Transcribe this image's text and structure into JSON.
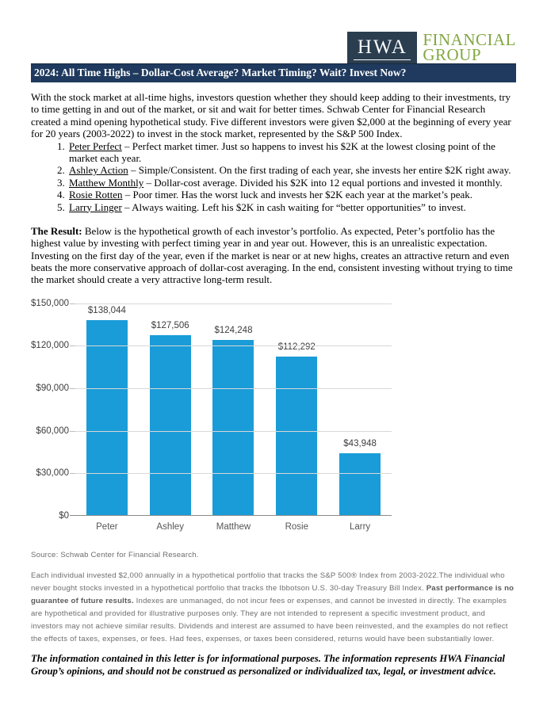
{
  "logo": {
    "monogram": "HWA",
    "name_line1": "FINANCIAL",
    "name_line2": "GROUP",
    "box_color": "#2b3e50",
    "name_color": "#82a843"
  },
  "title_bar": {
    "text": "2024: All Time Highs – Dollar-Cost Average? Market Timing? Wait? Invest Now?",
    "background": "#1f3a5e"
  },
  "intro": "With the stock market at all-time highs, investors question whether they should keep adding to their investments, try to time getting in and out of the market, or sit and wait for better times.  Schwab Center for Financial Research created a mind opening hypothetical study.  Five different investors were given $2,000 at the beginning of every year for 20 years (2003-2022) to invest in the stock market, represented by the S&P 500 Index.",
  "investors": [
    {
      "name": "Peter Perfect",
      "desc": " – Perfect market timer. Just so happens to invest his $2K at the lowest closing point of the market each year."
    },
    {
      "name": "Ashley Action",
      "desc": " – Simple/Consistent. On the first trading of each year, she invests her entire $2K right away."
    },
    {
      "name": "Matthew Monthly",
      "desc": " – Dollar-cost average. Divided his $2K into 12 equal portions and invested it monthly."
    },
    {
      "name": "Rosie Rotten",
      "desc": " – Poor timer. Has the worst luck and invests her $2K each year at the market’s peak."
    },
    {
      "name": "Larry Linger",
      "desc": " – Always waiting. Left his $2K in cash waiting for “better opportunities” to invest."
    }
  ],
  "result": {
    "lead": "The Result:",
    "text": " Below is the hypothetical growth of each investor’s portfolio. As expected, Peter’s portfolio has the highest value by investing with perfect timing year in and year out. However, this is an unrealistic expectation.  Investing on the first day of the year, even if the market is near or at new highs, creates an attractive return and even beats the more conservative approach of dollar-cost averaging.  In the end, consistent investing without trying to time the market should create a very attractive long-term result."
  },
  "chart_data": {
    "type": "bar",
    "categories": [
      "Peter",
      "Ashley",
      "Matthew",
      "Rosie",
      "Larry"
    ],
    "values": [
      138044,
      127506,
      124248,
      112292,
      43948
    ],
    "value_labels": [
      "$138,044",
      "$127,506",
      "$124,248",
      "$112,292",
      "$43,948"
    ],
    "title": "",
    "xlabel": "",
    "ylabel": "",
    "ylim": [
      0,
      150000
    ],
    "y_ticks": [
      150000,
      120000,
      90000,
      60000,
      30000,
      0
    ],
    "y_tick_labels": [
      "$150,000",
      "$120,000",
      "$90,000",
      "$60,000",
      "$30,000",
      "$0"
    ],
    "grid": true,
    "legend": "none",
    "bar_color": "#1a9cd8"
  },
  "source": "Source: Schwab Center for Financial Research.",
  "fine_print": {
    "p1": "Each individual invested $2,000 annually in a hypothetical portfolio that tracks the S&P 500® Index from 2003-2022.The individual who never bought stocks invested in a hypothetical portfolio that tracks the Ibbotson U.S. 30-day Treasury Bill Index. ",
    "bold": "Past performance is no guarantee of future results.",
    "p2": " Indexes are unmanaged, do not incur fees or expenses, and cannot be invested in directly. The examples are hypothetical and provided for illustrative purposes only. They are not intended to represent a specific investment product, and investors may not achieve similar results. Dividends and interest are assumed to have been reinvested, and the examples do not reflect the effects of taxes, expenses, or fees. Had fees, expenses, or taxes been considered, returns would have been substantially lower."
  },
  "disclaimer": "The information contained in this letter is for informational purposes.  The information represents HWA Financial Group’s opinions, and should not be construed as personalized or individualized tax, legal, or investment advice."
}
